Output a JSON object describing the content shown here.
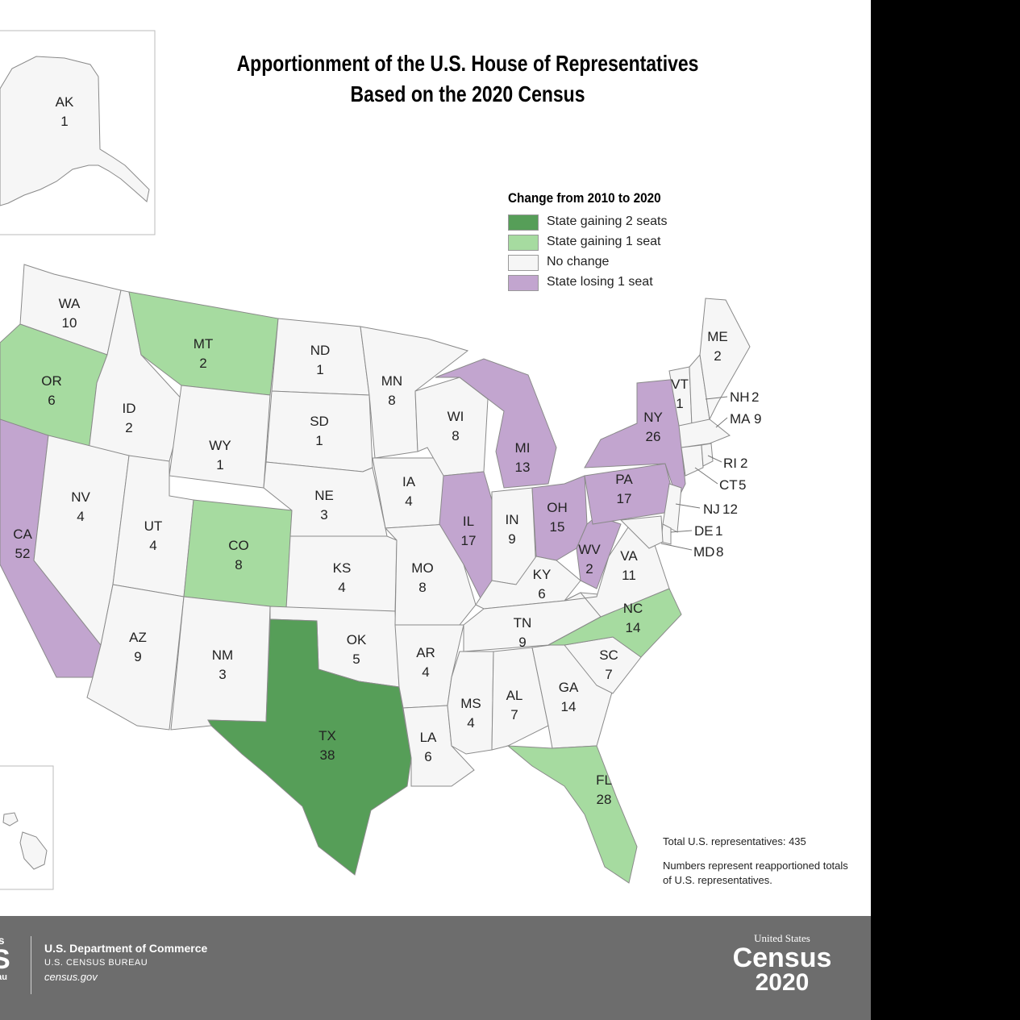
{
  "title": {
    "line1": "Apportionment of the U.S. House of Representatives",
    "line2": "Based on the 2020 Census"
  },
  "legend": {
    "title": "Change from 2010 to 2020",
    "items": [
      {
        "label": "State gaining 2 seats",
        "color": "#569e58"
      },
      {
        "label": "State gaining 1 seat",
        "color": "#a6dba0"
      },
      {
        "label": "No change",
        "color": "#f6f6f6"
      },
      {
        "label": "State losing 1 seat",
        "color": "#c2a5cf"
      }
    ]
  },
  "states": {
    "AK": {
      "abbr": "AK",
      "seats": "1",
      "change": "none"
    },
    "WA": {
      "abbr": "WA",
      "seats": "10",
      "change": "none"
    },
    "OR": {
      "abbr": "OR",
      "seats": "6",
      "change": "gain1"
    },
    "CA": {
      "abbr": "CA",
      "seats": "52",
      "change": "lose1"
    },
    "ID": {
      "abbr": "ID",
      "seats": "2",
      "change": "none"
    },
    "NV": {
      "abbr": "NV",
      "seats": "4",
      "change": "none"
    },
    "MT": {
      "abbr": "MT",
      "seats": "2",
      "change": "gain1"
    },
    "WY": {
      "abbr": "WY",
      "seats": "1",
      "change": "none"
    },
    "UT": {
      "abbr": "UT",
      "seats": "4",
      "change": "none"
    },
    "AZ": {
      "abbr": "AZ",
      "seats": "9",
      "change": "none"
    },
    "CO": {
      "abbr": "CO",
      "seats": "8",
      "change": "gain1"
    },
    "NM": {
      "abbr": "NM",
      "seats": "3",
      "change": "none"
    },
    "ND": {
      "abbr": "ND",
      "seats": "1",
      "change": "none"
    },
    "SD": {
      "abbr": "SD",
      "seats": "1",
      "change": "none"
    },
    "NE": {
      "abbr": "NE",
      "seats": "3",
      "change": "none"
    },
    "KS": {
      "abbr": "KS",
      "seats": "4",
      "change": "none"
    },
    "OK": {
      "abbr": "OK",
      "seats": "5",
      "change": "none"
    },
    "TX": {
      "abbr": "TX",
      "seats": "38",
      "change": "gain2"
    },
    "MN": {
      "abbr": "MN",
      "seats": "8",
      "change": "none"
    },
    "IA": {
      "abbr": "IA",
      "seats": "4",
      "change": "none"
    },
    "MO": {
      "abbr": "MO",
      "seats": "8",
      "change": "none"
    },
    "AR": {
      "abbr": "AR",
      "seats": "4",
      "change": "none"
    },
    "LA": {
      "abbr": "LA",
      "seats": "6",
      "change": "none"
    },
    "WI": {
      "abbr": "WI",
      "seats": "8",
      "change": "none"
    },
    "IL": {
      "abbr": "IL",
      "seats": "17",
      "change": "lose1"
    },
    "MI": {
      "abbr": "MI",
      "seats": "13",
      "change": "lose1"
    },
    "IN": {
      "abbr": "IN",
      "seats": "9",
      "change": "none"
    },
    "OH": {
      "abbr": "OH",
      "seats": "15",
      "change": "lose1"
    },
    "KY": {
      "abbr": "KY",
      "seats": "6",
      "change": "none"
    },
    "TN": {
      "abbr": "TN",
      "seats": "9",
      "change": "none"
    },
    "MS": {
      "abbr": "MS",
      "seats": "4",
      "change": "none"
    },
    "AL": {
      "abbr": "AL",
      "seats": "7",
      "change": "none"
    },
    "GA": {
      "abbr": "GA",
      "seats": "14",
      "change": "none"
    },
    "FL": {
      "abbr": "FL",
      "seats": "28",
      "change": "gain1"
    },
    "SC": {
      "abbr": "SC",
      "seats": "7",
      "change": "none"
    },
    "NC": {
      "abbr": "NC",
      "seats": "14",
      "change": "gain1"
    },
    "VA": {
      "abbr": "VA",
      "seats": "11",
      "change": "none"
    },
    "WV": {
      "abbr": "WV",
      "seats": "2",
      "change": "lose1"
    },
    "PA": {
      "abbr": "PA",
      "seats": "17",
      "change": "lose1"
    },
    "NY": {
      "abbr": "NY",
      "seats": "26",
      "change": "lose1"
    },
    "VT": {
      "abbr": "VT",
      "seats": "1",
      "change": "none"
    },
    "ME": {
      "abbr": "ME",
      "seats": "2",
      "change": "none"
    },
    "NH": {
      "abbr": "NH",
      "seats": "2",
      "change": "none"
    },
    "MA": {
      "abbr": "MA",
      "seats": "9",
      "change": "none"
    },
    "RI": {
      "abbr": "RI",
      "seats": "2",
      "change": "none"
    },
    "CT": {
      "abbr": "CT",
      "seats": "5",
      "change": "none"
    },
    "NJ": {
      "abbr": "NJ",
      "seats": "12",
      "change": "none"
    },
    "DE": {
      "abbr": "DE",
      "seats": "1",
      "change": "none"
    },
    "MD": {
      "abbr": "MD",
      "seats": "8",
      "change": "none"
    }
  },
  "notes": {
    "total": "Total U.S. representatives: 435",
    "explanation": "Numbers represent reapportioned totals of U.S. representatives."
  },
  "footer": {
    "logo_left_partial_1": "es",
    "logo_left_partial_2": "S",
    "logo_left_partial_3": "eau",
    "dept_name": "U.S. Department of Commerce",
    "bureau": "U.S. CENSUS BUREAU",
    "website": "census.gov",
    "logo_line1": "United States",
    "logo_line2": "Census",
    "logo_line3": "2020"
  }
}
